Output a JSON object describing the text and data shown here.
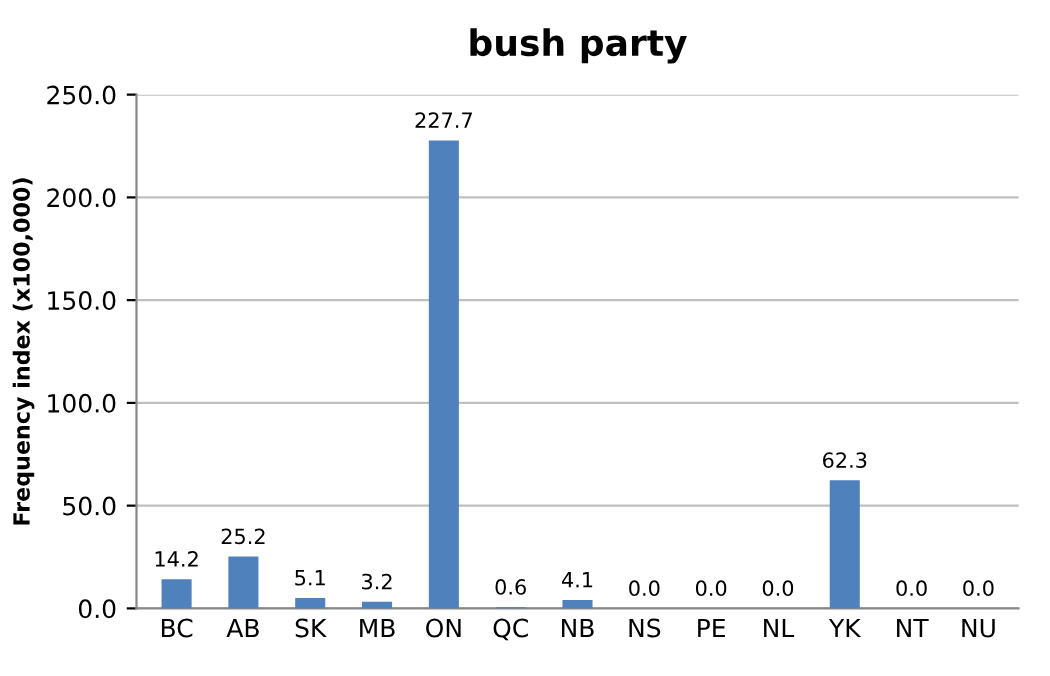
{
  "chart_data": {
    "type": "bar",
    "title": "bush party",
    "ylabel": "Frequency index (x100,000)",
    "categories": [
      "BC",
      "AB",
      "SK",
      "MB",
      "ON",
      "QC",
      "NB",
      "NS",
      "PE",
      "NL",
      "YK",
      "NT",
      "NU"
    ],
    "values": [
      14.2,
      25.2,
      5.1,
      3.2,
      227.7,
      0.6,
      4.1,
      0.0,
      0.0,
      0.0,
      62.3,
      0.0,
      0.0
    ],
    "color": "#4f81bd",
    "ylim": [
      0,
      250
    ],
    "yticks": [
      {
        "value": 0,
        "label": "0.0"
      },
      {
        "value": 50,
        "label": "50.0"
      },
      {
        "value": 100,
        "label": "100.0"
      },
      {
        "value": 150,
        "label": "150.0"
      },
      {
        "value": 200,
        "label": "200.0"
      },
      {
        "value": 250,
        "label": "250.0"
      }
    ],
    "value_labels": [
      "14.2",
      "25.2",
      "5.1",
      "3.2",
      "227.7",
      "0.6",
      "4.1",
      "0.0",
      "0.0",
      "0.0",
      "62.3",
      "0.0",
      "0.0"
    ],
    "grid": "y"
  }
}
